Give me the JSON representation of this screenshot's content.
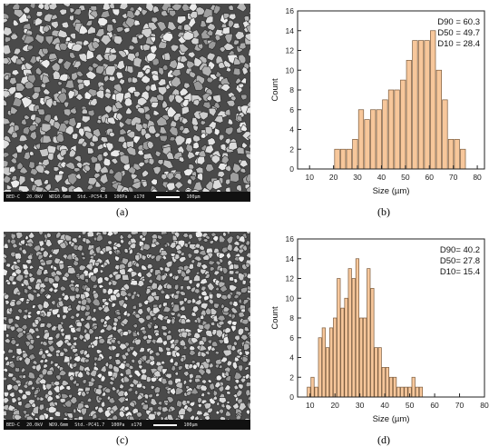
{
  "captions": {
    "a": "(a)",
    "b": "(b)",
    "c": "(c)",
    "d": "(d)"
  },
  "micrographs": [
    {
      "footer": [
        "BED-C",
        "20.0kV",
        "WD10.6mm",
        "Std.-PC54.8",
        "100Pa",
        "x170"
      ],
      "scale_label": "100µm"
    },
    {
      "footer": [
        "BED-C",
        "20.0kV",
        "WD9.6mm",
        "Std.-PC41.7",
        "100Pa",
        "x170"
      ],
      "scale_label": "100µm"
    }
  ],
  "colors": {
    "bar_fill": "#f7c79b",
    "bar_stroke": "#7a5a3c",
    "axis": "#222222",
    "sem_bg": "#555555",
    "sem_bar": "#111111"
  },
  "chart_data": [
    {
      "type": "bar",
      "xlabel": "Size (µm)",
      "ylabel": "Count",
      "xlim": [
        5,
        83
      ],
      "ylim": [
        0,
        16
      ],
      "xticks": [
        10,
        20,
        30,
        40,
        50,
        60,
        70,
        80
      ],
      "yticks": [
        0,
        2,
        4,
        6,
        8,
        10,
        12,
        14,
        16
      ],
      "annotations": [
        "D90 = 60.3",
        "D50 = 49.7",
        "D10 = 28.4"
      ],
      "bin_width": 2.5,
      "x": [
        21.5,
        24,
        26.5,
        29,
        31.5,
        34,
        36.5,
        39,
        41.5,
        44,
        46.5,
        49,
        51.5,
        54,
        56.5,
        59,
        61.5,
        64,
        66.5,
        69,
        71.5,
        74
      ],
      "values": [
        2,
        2,
        2,
        3,
        6,
        5,
        6,
        6,
        7,
        8,
        8,
        9,
        11,
        13,
        13,
        13,
        14,
        10,
        7,
        3,
        3,
        2
      ]
    },
    {
      "type": "bar",
      "xlabel": "Size (µm)",
      "ylabel": "Count",
      "xlim": [
        5,
        80
      ],
      "ylim": [
        0,
        16
      ],
      "xticks": [
        10,
        20,
        30,
        40,
        50,
        60,
        70,
        80
      ],
      "yticks": [
        0,
        2,
        4,
        6,
        8,
        10,
        12,
        14,
        16
      ],
      "annotations": [
        "D90= 40.2",
        "D50= 27.8",
        "D10= 15.4"
      ],
      "bin_width": 1.5,
      "x": [
        9.5,
        11,
        12.5,
        14,
        15.5,
        17,
        18.5,
        20,
        21.5,
        23,
        24.5,
        26,
        27.5,
        29,
        30.5,
        32,
        33.5,
        35,
        36.5,
        38,
        39.5,
        41,
        42.5,
        44,
        45.5,
        47,
        48.5,
        50,
        51.5,
        53,
        54.5
      ],
      "values": [
        1,
        2,
        1,
        6,
        7,
        5,
        7,
        8,
        12,
        9,
        10,
        13,
        12,
        14,
        8,
        8,
        13,
        11,
        5,
        5,
        3,
        3,
        2,
        2,
        1,
        1,
        1,
        1,
        2,
        1,
        1
      ]
    }
  ]
}
